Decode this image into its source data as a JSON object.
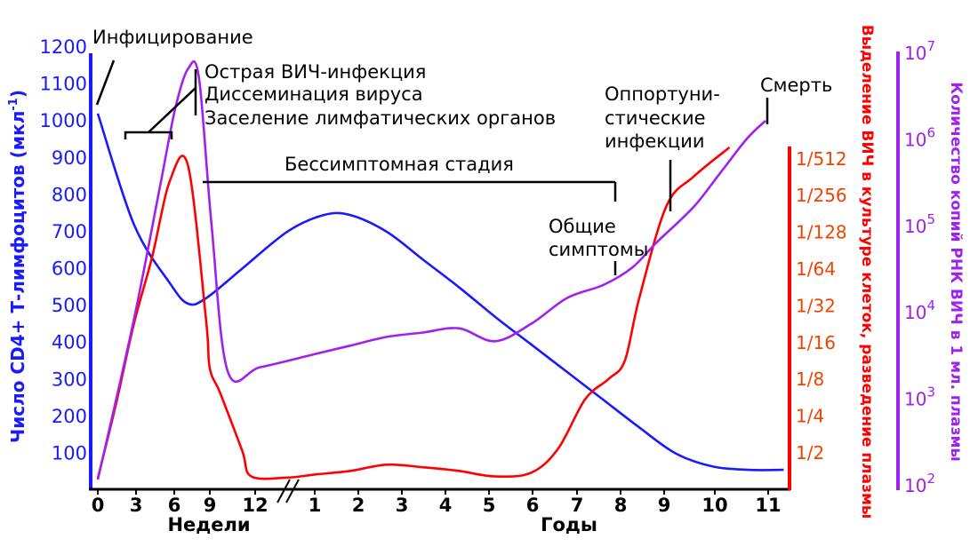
{
  "chart_data": {
    "type": "line",
    "x_ticks": [
      "0",
      "3",
      "6",
      "9",
      "12",
      "1",
      "2",
      "3",
      "4",
      "5",
      "6",
      "7",
      "8",
      "9",
      "10",
      "11"
    ],
    "x_groups": [
      {
        "label": "Недели",
        "ticks": [
          "0",
          "3",
          "6",
          "9",
          "12"
        ]
      },
      {
        "label": "Годы",
        "ticks": [
          "1",
          "2",
          "3",
          "4",
          "5",
          "6",
          "7",
          "8",
          "9",
          "10",
          "11"
        ]
      }
    ],
    "axes": {
      "left": {
        "label": "Число CD4+ Т-лимфоцитов (мкл",
        "label_sup": "-1",
        "label_end": ")",
        "ticks": [
          "100",
          "200",
          "300",
          "400",
          "500",
          "600",
          "700",
          "800",
          "900",
          "1000",
          "1100",
          "1200"
        ],
        "range": [
          0,
          1200
        ],
        "color": "#1a1aff"
      },
      "right1": {
        "label": "Выделение ВИЧ в культуре клеток, разведение плазмы",
        "ticks": [
          "1/2",
          "1/4",
          "1/8",
          "1/16",
          "1/32",
          "1/64",
          "1/128",
          "1/256",
          "1/512"
        ],
        "color": "#ff0000",
        "tick_color": "#ee4400"
      },
      "right2": {
        "label": "Количество копий РНК ВИЧ в 1 мл. плазмы",
        "ticks": [
          {
            "base": "10",
            "exp": "2"
          },
          {
            "base": "10",
            "exp": "3"
          },
          {
            "base": "10",
            "exp": "4"
          },
          {
            "base": "10",
            "exp": "5"
          },
          {
            "base": "10",
            "exp": "6"
          },
          {
            "base": "10",
            "exp": "7"
          }
        ],
        "scale": "log",
        "color": "#a020f0"
      }
    },
    "series": [
      {
        "axis": "left",
        "color": "#1a1aff",
        "points": [
          [
            0,
            1020
          ],
          [
            2,
            720
          ],
          [
            4,
            560
          ],
          [
            5,
            505
          ],
          [
            6,
            520
          ],
          [
            8,
            600
          ],
          [
            10.5,
            700
          ],
          [
            12.5,
            745
          ],
          [
            14,
            745
          ],
          [
            16,
            700
          ],
          [
            18,
            625
          ],
          [
            20,
            550
          ],
          [
            22,
            470
          ],
          [
            24,
            395
          ],
          [
            26,
            320
          ],
          [
            28,
            245
          ],
          [
            30,
            170
          ],
          [
            32,
            100
          ],
          [
            34,
            65
          ],
          [
            36,
            55
          ],
          [
            38,
            55
          ]
        ]
      },
      {
        "axis": "right1",
        "color": "#ff0000",
        "points": [
          [
            0,
            0.3
          ],
          [
            1,
            2.3
          ],
          [
            2,
            4.5
          ],
          [
            3,
            6.3
          ],
          [
            4,
            8.4
          ],
          [
            5,
            8.8
          ],
          [
            6,
            4.6
          ],
          [
            6.2,
            3.3
          ],
          [
            6.8,
            2.6
          ],
          [
            8,
            1.05
          ],
          [
            8.5,
            0.35
          ],
          [
            10.5,
            0.32
          ],
          [
            12,
            0.4
          ],
          [
            14,
            0.5
          ],
          [
            16,
            0.67
          ],
          [
            18,
            0.6
          ],
          [
            20,
            0.5
          ],
          [
            22,
            0.35
          ],
          [
            24,
            0.45
          ],
          [
            25.5,
            1.1
          ],
          [
            27,
            2.45
          ],
          [
            28.3,
            3.0
          ],
          [
            29.2,
            3.5
          ],
          [
            30,
            5.2
          ],
          [
            31.5,
            7.7
          ],
          [
            33,
            8.5
          ],
          [
            35,
            9.3
          ]
        ]
      },
      {
        "axis": "right2",
        "color": "#a020f0",
        "points": [
          [
            0,
            2.05
          ],
          [
            2,
            3.9
          ],
          [
            3.5,
            5.5
          ],
          [
            4.3,
            6.35
          ],
          [
            5,
            6.8
          ],
          [
            5.6,
            6.7
          ],
          [
            6.3,
            5.0
          ],
          [
            7.2,
            3.3
          ],
          [
            9,
            3.35
          ],
          [
            12,
            3.5
          ],
          [
            14,
            3.6
          ],
          [
            16,
            3.7
          ],
          [
            18,
            3.75
          ],
          [
            20,
            3.8
          ],
          [
            22,
            3.65
          ],
          [
            24,
            3.85
          ],
          [
            26,
            4.15
          ],
          [
            28,
            4.3
          ],
          [
            29.6,
            4.5
          ],
          [
            31,
            4.8
          ],
          [
            33,
            5.2
          ],
          [
            34.5,
            5.6
          ],
          [
            36,
            6.0
          ],
          [
            37,
            6.2
          ]
        ]
      }
    ],
    "annotations": {
      "infection": "Инфицирование",
      "acute": [
        "Острая ВИЧ-инфекция",
        "Диссеминация вируса",
        "Заселение лимфатических органов"
      ],
      "asymptomatic": "Бессимптомная стадия",
      "general": [
        "Общие",
        "симптомы"
      ],
      "opportunistic": [
        "Оппортуни-",
        "стические",
        "инфекции"
      ],
      "death": "Смерть"
    }
  }
}
